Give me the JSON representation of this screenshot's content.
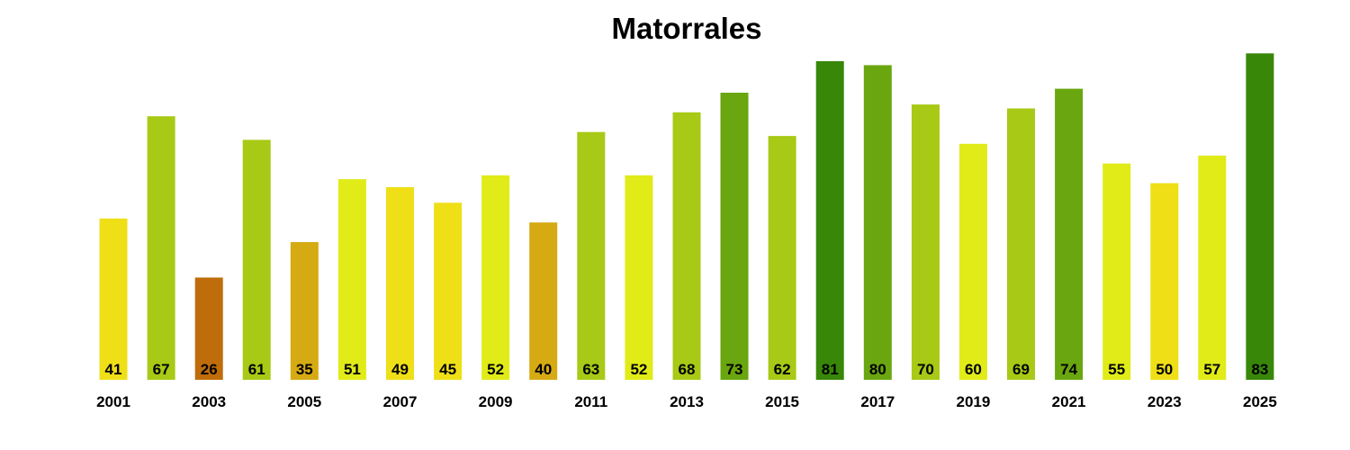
{
  "chart_data": {
    "type": "bar",
    "title": "Matorrales",
    "xlabel": "",
    "ylabel": "",
    "ylim": [
      0,
      100
    ],
    "grid": false,
    "legend": "none",
    "categories": [
      "2001",
      "2002",
      "2003",
      "2004",
      "2005",
      "2006",
      "2007",
      "2008",
      "2009",
      "2010",
      "2011",
      "2012",
      "2013",
      "2014",
      "2015",
      "2016",
      "2017",
      "2018",
      "2019",
      "2020",
      "2021",
      "2022",
      "2023",
      "2024",
      "2025"
    ],
    "tick_labels": [
      "2001",
      "",
      "2003",
      "",
      "2005",
      "",
      "2007",
      "",
      "2009",
      "",
      "2011",
      "",
      "2013",
      "",
      "2015",
      "",
      "2017",
      "",
      "2019",
      "",
      "2021",
      "",
      "2023",
      "",
      "2025"
    ],
    "values": [
      41,
      67,
      26,
      61,
      35,
      51,
      49,
      45,
      52,
      40,
      63,
      52,
      68,
      73,
      62,
      81,
      80,
      70,
      60,
      69,
      74,
      55,
      50,
      57,
      83
    ],
    "colors": [
      "#efdf17",
      "#a8c915",
      "#bf6d0a",
      "#a8c915",
      "#d6aa12",
      "#e0eb18",
      "#efdf17",
      "#efdf17",
      "#e0eb18",
      "#d6aa12",
      "#a8c915",
      "#e0eb18",
      "#a8c915",
      "#6aa60f",
      "#a8c915",
      "#388708",
      "#6aa60f",
      "#a8c915",
      "#e0eb18",
      "#a8c915",
      "#6aa60f",
      "#e0eb18",
      "#efdf17",
      "#e0eb18",
      "#388708"
    ]
  }
}
